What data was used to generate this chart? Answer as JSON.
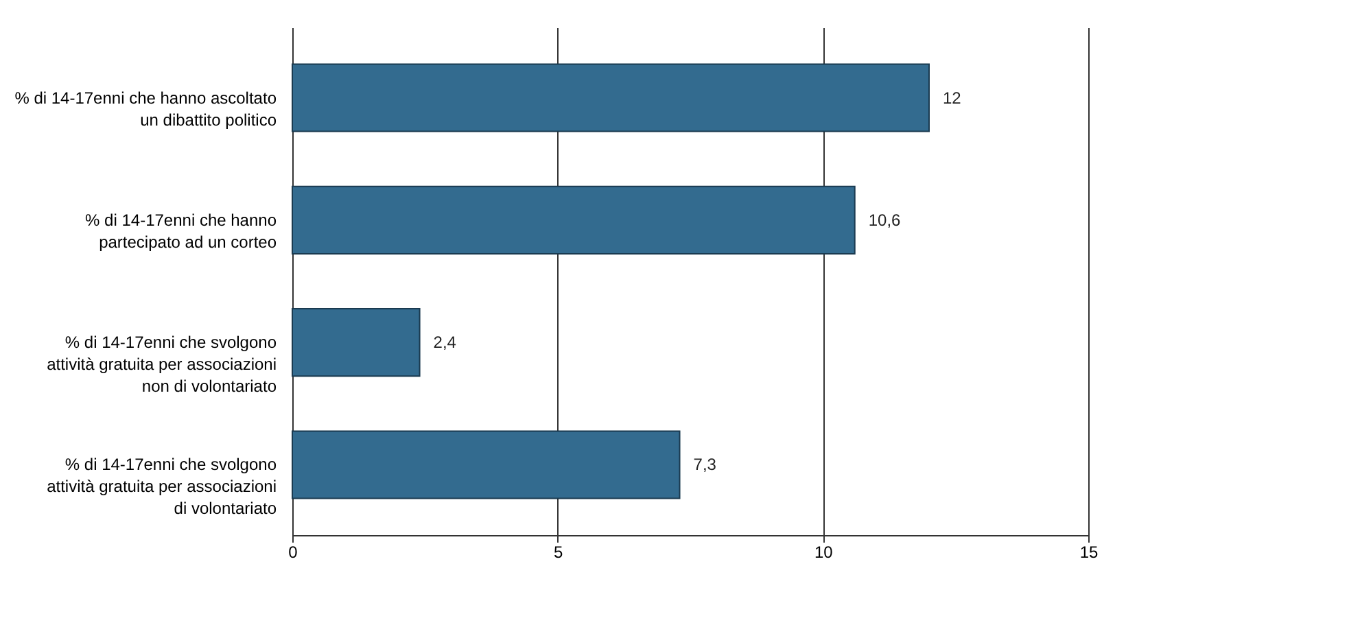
{
  "chart_data": {
    "type": "bar",
    "orientation": "horizontal",
    "categories": [
      "% di 14-17enni che hanno ascoltato un dibattito politico",
      "% di 14-17enni che hanno partecipato ad un corteo",
      "% di 14-17enni che svolgono attività gratuita per associazioni non di volontariato",
      "% di 14-17enni che svolgono attività gratuita per associazioni di volontariato"
    ],
    "values": [
      12,
      10.6,
      2.4,
      7.3
    ],
    "value_labels": [
      "12",
      "10,6",
      "2,4",
      "7,3"
    ],
    "color": "#336b8f",
    "xlim": [
      0,
      15
    ],
    "xticks": [
      0,
      5,
      10,
      15
    ],
    "grid": "x"
  }
}
